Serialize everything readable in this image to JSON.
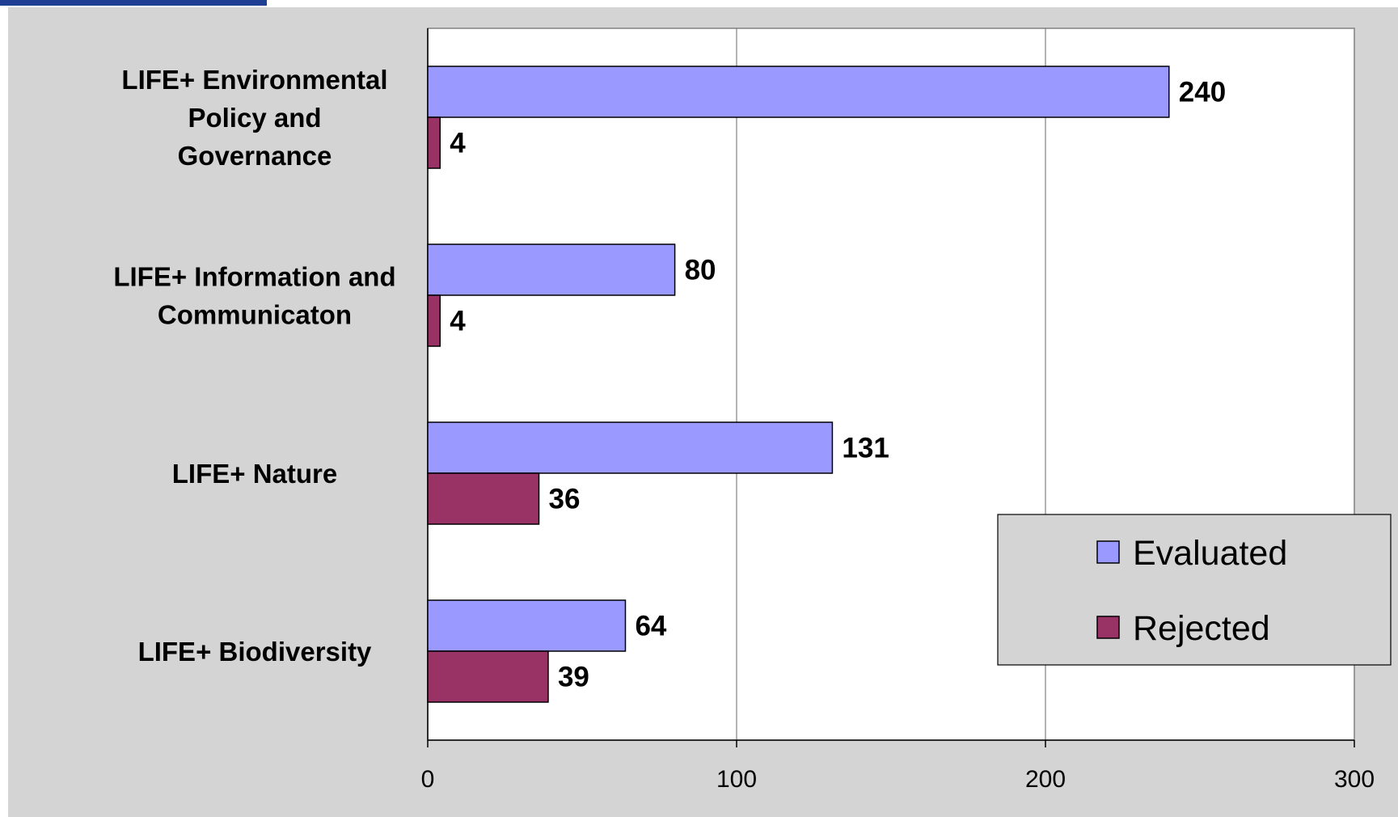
{
  "chart_data": {
    "type": "bar",
    "orientation": "horizontal",
    "categories": [
      [
        "LIFE+ Environmental",
        "Policy and",
        "Governance"
      ],
      [
        "LIFE+ Information and",
        "Communicaton"
      ],
      [
        "LIFE+ Nature"
      ],
      [
        "LIFE+ Biodiversity"
      ]
    ],
    "series": [
      {
        "name": "Evaluated",
        "values": [
          240,
          80,
          131,
          64
        ],
        "color": "#9999ff"
      },
      {
        "name": "Rejected",
        "values": [
          4,
          4,
          36,
          39
        ],
        "color": "#993366"
      }
    ],
    "xlim": [
      0,
      300
    ],
    "xticks": [
      0,
      100,
      200,
      300
    ],
    "xtick_labels": [
      "0",
      "100",
      "200",
      "300"
    ],
    "grid": "vertical",
    "legend": "bottom-right",
    "data_labels": true,
    "title": "",
    "xlabel": "",
    "ylabel": ""
  },
  "colors": {
    "chart_background": "#d4d4d4",
    "plot_background": "#ffffff",
    "accent": "#1f3f95"
  }
}
